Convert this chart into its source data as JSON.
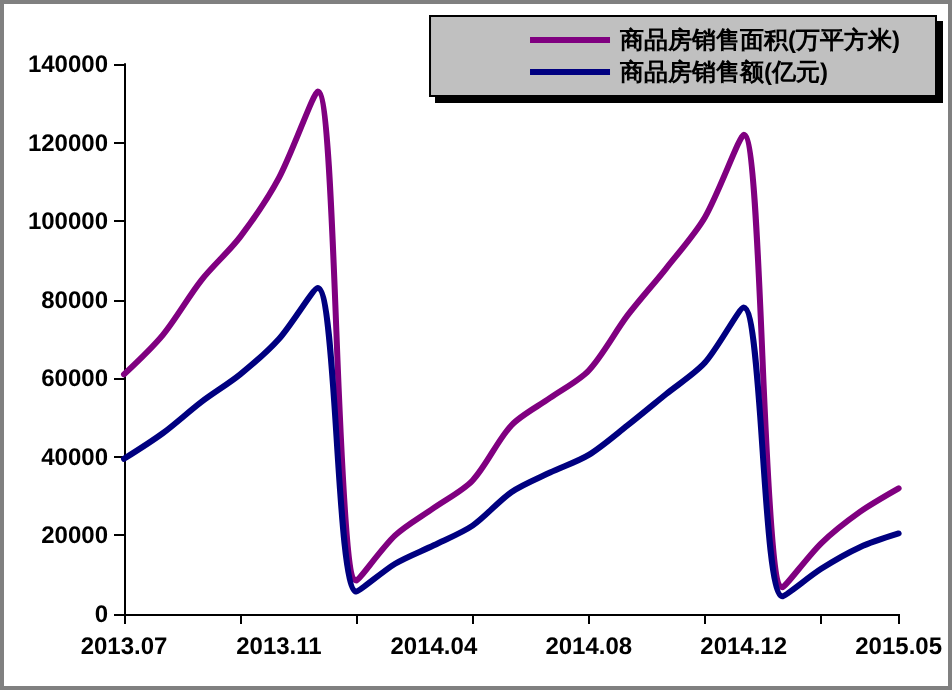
{
  "chart_data": {
    "type": "line",
    "categories": [
      "2013.07",
      null,
      null,
      null,
      "2013.11",
      null,
      null,
      null,
      "2014.04",
      null,
      null,
      null,
      "2014.08",
      null,
      null,
      null,
      "2014.12",
      null,
      null,
      null,
      "2015.05"
    ],
    "series": [
      {
        "name": "商品房销售面积(万平方米)",
        "color": "#800080",
        "values": [
          61000,
          71000,
          85000,
          96000,
          111000,
          133000,
          8500,
          20000,
          27000,
          34000,
          48000,
          55000,
          62000,
          76000,
          88000,
          101000,
          122000,
          6800,
          18000,
          26000,
          32000
        ]
      },
      {
        "name": "商品房销售额(亿元)",
        "color": "#000080",
        "values": [
          39500,
          46000,
          54000,
          61000,
          70000,
          83000,
          5700,
          12800,
          17500,
          22500,
          31000,
          36000,
          40500,
          48000,
          56000,
          64000,
          78000,
          4500,
          11500,
          17000,
          20500
        ]
      }
    ],
    "ylim": [
      0,
      140000
    ],
    "yticks": [
      0,
      20000,
      40000,
      60000,
      80000,
      100000,
      120000,
      140000
    ],
    "grid": false,
    "legend": "top right",
    "marker": "none",
    "line_style": "solid"
  }
}
